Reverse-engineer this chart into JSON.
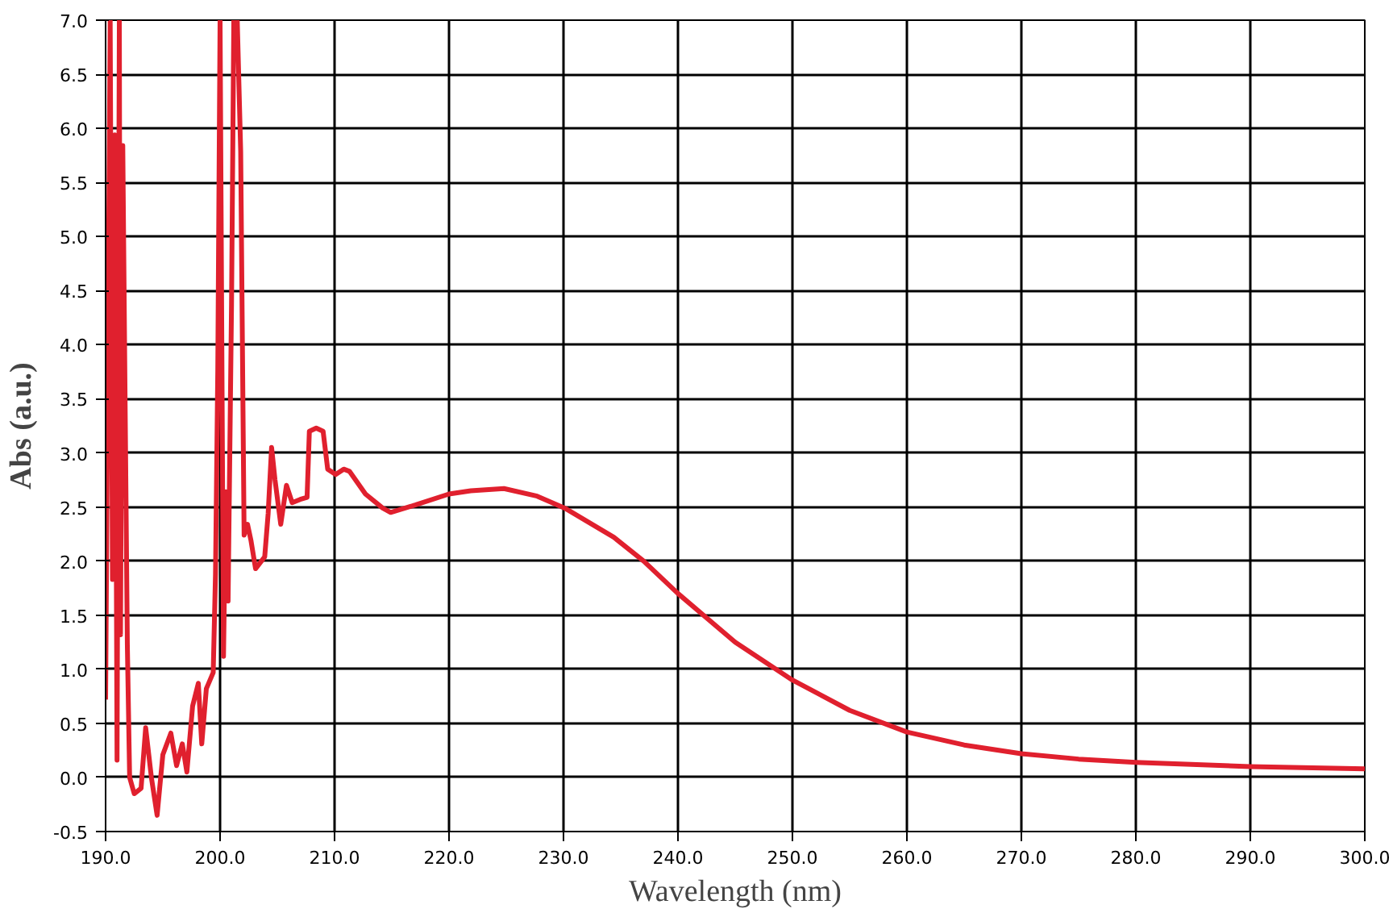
{
  "chart_data": {
    "type": "line",
    "xlabel": "Wavelength (nm)",
    "ylabel": "Abs (a.u.)",
    "xlim": [
      190,
      300
    ],
    "ylim": [
      -0.5,
      7.0
    ],
    "grid": true,
    "line_style": "solid",
    "marker": "none",
    "xticks": [
      {
        "value": 190,
        "label": "190.0"
      },
      {
        "value": 200,
        "label": "200.0"
      },
      {
        "value": 210,
        "label": "210.0"
      },
      {
        "value": 220,
        "label": "220.0"
      },
      {
        "value": 230,
        "label": "230.0"
      },
      {
        "value": 240,
        "label": "240.0"
      },
      {
        "value": 250,
        "label": "250.0"
      },
      {
        "value": 260,
        "label": "260.0"
      },
      {
        "value": 270,
        "label": "270.0"
      },
      {
        "value": 280,
        "label": "280.0"
      },
      {
        "value": 290,
        "label": "290.0"
      },
      {
        "value": 300,
        "label": "300.0"
      }
    ],
    "yticks": [
      {
        "value": -0.5,
        "label": "-0.5"
      },
      {
        "value": 0,
        "label": "0.0"
      },
      0.5,
      {
        "value": 1,
        "label": "1.0"
      },
      1.5,
      {
        "value": 2,
        "label": "2.0"
      },
      2.5,
      {
        "value": 3,
        "label": "3.0"
      },
      3.5,
      {
        "value": 4,
        "label": "4.0"
      },
      4.5,
      {
        "value": 5,
        "label": "5.0"
      },
      5.5,
      {
        "value": 6,
        "label": "6.0"
      },
      6.5,
      {
        "value": 7,
        "label": "7.0"
      }
    ],
    "series": [
      {
        "color": "#e0202e",
        "x": [
          190.0,
          190.2,
          190.4,
          190.6,
          190.8,
          191.0,
          191.2,
          191.3,
          191.5,
          191.7,
          191.9,
          192.1,
          192.5,
          193.1,
          193.5,
          194.0,
          194.5,
          195.0,
          195.7,
          196.2,
          196.7,
          197.1,
          197.6,
          198.1,
          198.4,
          198.8,
          199.4,
          199.6,
          199.8,
          200.0,
          200.3,
          200.5,
          200.7,
          201.0,
          201.2,
          201.5,
          201.8,
          202.1,
          202.4,
          202.7,
          203.1,
          203.9,
          204.2,
          204.5,
          204.8,
          205.3,
          205.8,
          206.3,
          207.0,
          207.6,
          207.8,
          208.4,
          209.0,
          209.4,
          210.1,
          210.8,
          211.3,
          212.7,
          214.2,
          214.9,
          217.1,
          220.0,
          221.9,
          224.8,
          227.7,
          230.1,
          234.4,
          237.0,
          240.0,
          245.0,
          250.0,
          255.0,
          260.0,
          265.0,
          270.0,
          275.0,
          280.0,
          290.0,
          300.0
        ],
        "values": [
          0.72,
          3.86,
          7.0,
          1.83,
          5.94,
          0.16,
          7.0,
          1.32,
          5.84,
          3.51,
          1.22,
          0.0,
          -0.15,
          -0.1,
          0.46,
          0.0,
          -0.35,
          0.21,
          0.41,
          0.11,
          0.31,
          0.05,
          0.66,
          0.87,
          0.31,
          0.82,
          0.97,
          1.88,
          3.76,
          7.0,
          1.12,
          2.64,
          1.63,
          4.37,
          7.0,
          7.0,
          5.79,
          2.24,
          2.34,
          2.19,
          1.93,
          2.04,
          2.44,
          3.05,
          2.75,
          2.34,
          2.7,
          2.54,
          2.57,
          2.59,
          3.2,
          3.23,
          3.2,
          2.85,
          2.8,
          2.85,
          2.83,
          2.62,
          2.49,
          2.45,
          2.52,
          2.62,
          2.65,
          2.67,
          2.6,
          2.49,
          2.22,
          2.0,
          1.7,
          1.25,
          0.9,
          0.62,
          0.42,
          0.3,
          0.22,
          0.17,
          0.14,
          0.1,
          0.08
        ]
      }
    ]
  }
}
